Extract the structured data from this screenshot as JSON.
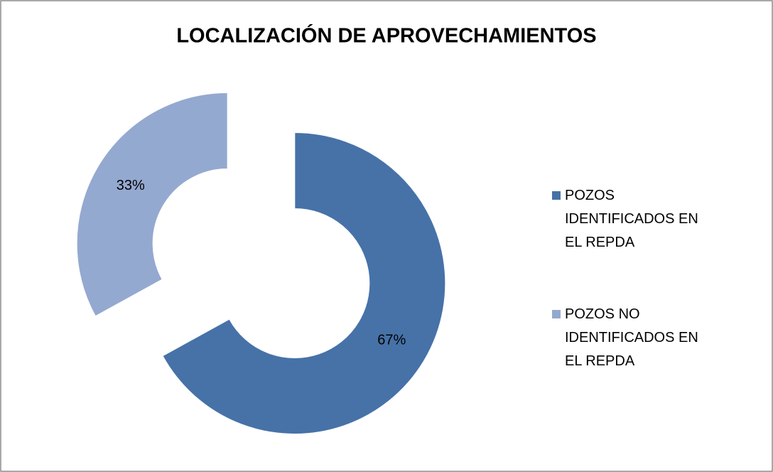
{
  "chart_data": {
    "type": "donut",
    "title": "LOCALIZACIÓN DE APROVECHAMIENTOS",
    "categories": [
      "POZOS IDENTIFICADOS EN EL REPDA",
      "POZOS NO IDENTIFICADOS EN EL REPDA"
    ],
    "values": [
      67,
      33
    ],
    "value_labels": [
      "67%",
      "33%"
    ],
    "colors": [
      "#4672a8",
      "#94a9d0"
    ],
    "legend": "right"
  }
}
